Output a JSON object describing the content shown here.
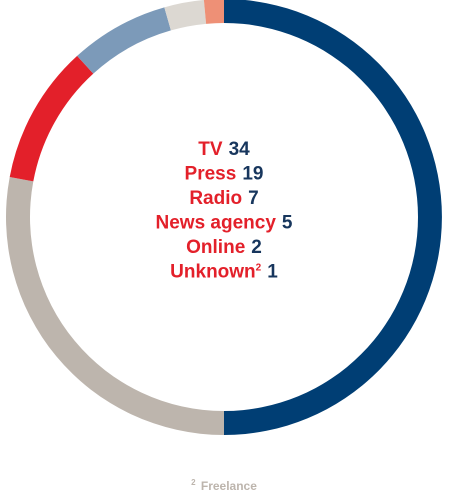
{
  "chart_data": {
    "type": "pie",
    "categories": [
      "TV",
      "Press",
      "Radio",
      "News agency",
      "Online",
      "Unknown"
    ],
    "values": [
      34,
      19,
      7,
      5,
      2,
      1
    ],
    "colors": [
      "#003e74",
      "#bdb5ad",
      "#e3202a",
      "#7c9ab9",
      "#dcd8d2",
      "#ee9076"
    ],
    "label_color": "#e3202a",
    "value_color": "#17365d",
    "style": "donut",
    "labels": [
      {
        "name": "TV",
        "sup": "",
        "value": "34"
      },
      {
        "name": "Press",
        "sup": "",
        "value": "19"
      },
      {
        "name": "Radio",
        "sup": "",
        "value": "7"
      },
      {
        "name": "News agency",
        "sup": "",
        "value": "5"
      },
      {
        "name": "Online",
        "sup": "",
        "value": "2"
      },
      {
        "name": "Unknown",
        "sup": "2",
        "value": "1"
      }
    ],
    "footnote": {
      "sup": "2",
      "text": "Freelance"
    }
  }
}
